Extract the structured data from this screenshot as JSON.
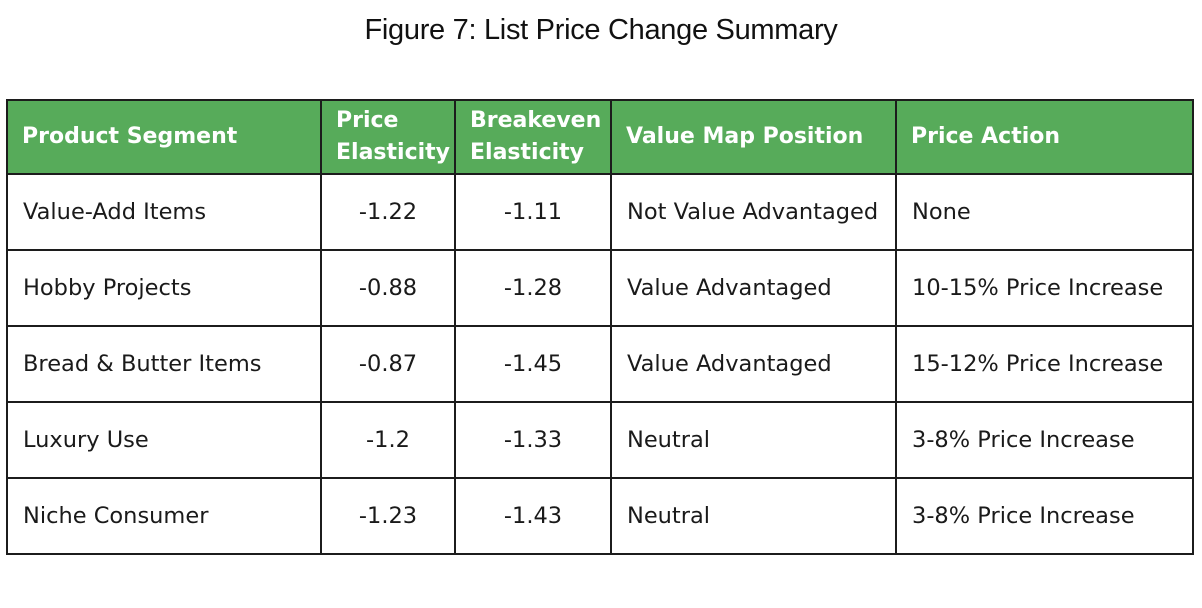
{
  "title": "Figure 7: List Price Change Summary",
  "table": {
    "headers": [
      "Product Segment",
      "Price Elasticity",
      "Breakeven Elasticity",
      "Value Map Position",
      "Price Action"
    ],
    "rows": [
      [
        "Value-Add Items",
        "-1.22",
        "-1.11",
        "Not Value Advantaged",
        "None"
      ],
      [
        "Hobby Projects",
        "-0.88",
        "-1.28",
        "Value Advantaged",
        "10-15% Price Increase"
      ],
      [
        "Bread & Butter Items",
        "-0.87",
        "-1.45",
        "Value Advantaged",
        "15-12% Price Increase"
      ],
      [
        "Luxury Use",
        "-1.2",
        "-1.33",
        "Neutral",
        "3-8% Price Increase"
      ],
      [
        "Niche Consumer",
        "-1.23",
        "-1.43",
        "Neutral",
        "3-8% Price Increase"
      ]
    ]
  },
  "colors": {
    "header_background": "#57ab5a",
    "header_text": "#ffffff",
    "border": "#1c1c1c"
  }
}
